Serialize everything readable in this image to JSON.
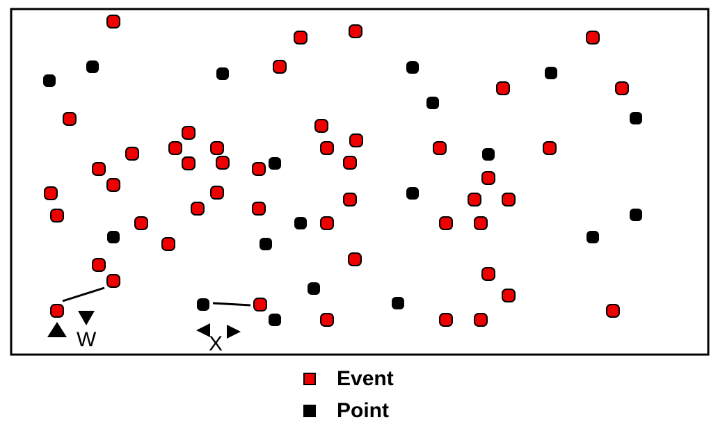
{
  "colors": {
    "event": "#ee0000",
    "point": "#000000"
  },
  "labels": {
    "w": "W",
    "x": "X"
  },
  "legend": {
    "event": "Event",
    "point": "Point"
  }
}
